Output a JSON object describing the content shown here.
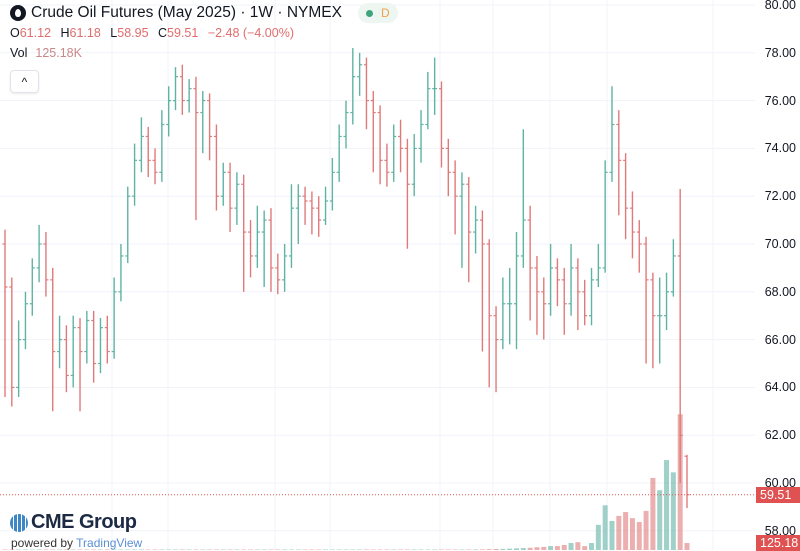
{
  "header": {
    "title": "Crude Oil Futures (May 2025) · 1W · NYMEX",
    "status_dot_color": "#3fa37d",
    "badge_letter": "D",
    "ohlc": {
      "o_label": "O",
      "o": "61.12",
      "h_label": "H",
      "h": "61.18",
      "l_label": "L",
      "l": "58.95",
      "c_label": "C",
      "c": "59.51",
      "change": "−2.48 (−4.00%)"
    },
    "vol_label": "Vol",
    "vol_value": "125.18K",
    "collapse_icon": "chevron-up-icon",
    "collapse_glyph": "^"
  },
  "branding": {
    "logo_text": "CME Group",
    "powered_by": "powered by",
    "platform": "TradingView"
  },
  "price_axis": {
    "ticks": [
      "80.00",
      "78.00",
      "76.00",
      "74.00",
      "72.00",
      "70.00",
      "68.00",
      "66.00",
      "64.00",
      "62.00",
      "60.00",
      "58.00"
    ],
    "last_price_label": "59.51",
    "last_volume_label": "125.18"
  },
  "colors": {
    "up": "#5fb3a3",
    "down": "#e07a7a",
    "price_tag": "#e05252"
  },
  "chart_data": {
    "type": "ohlc",
    "ylim": [
      58,
      80
    ],
    "grid": true,
    "last_price": 59.51,
    "bars": [
      [
        70,
        70.6,
        63.6,
        68.2
      ],
      [
        68.2,
        68.6,
        63.2,
        64
      ],
      [
        64,
        66.8,
        63.6,
        66
      ],
      [
        66,
        68,
        65.6,
        67.5
      ],
      [
        67.5,
        69.4,
        67,
        69
      ],
      [
        69,
        70.8,
        68.4,
        70
      ],
      [
        70,
        70.5,
        67.8,
        68.5
      ],
      [
        68.5,
        69,
        63,
        65.5
      ],
      [
        65.5,
        67,
        64.8,
        66
      ],
      [
        66,
        66.6,
        63.8,
        64.5
      ],
      [
        64.5,
        67,
        64,
        66.5
      ],
      [
        66.5,
        66.9,
        63,
        65.5
      ],
      [
        65.5,
        67.2,
        65,
        66.8
      ],
      [
        66.8,
        67.2,
        64.2,
        65
      ],
      [
        65,
        66.9,
        64.6,
        66.5
      ],
      [
        66.5,
        67,
        65,
        65.5
      ],
      [
        65.5,
        68.6,
        65.2,
        68
      ],
      [
        68,
        70,
        67.6,
        69.5
      ],
      [
        69.5,
        72.4,
        69.2,
        72
      ],
      [
        72,
        74.2,
        71.6,
        73.5
      ],
      [
        73.5,
        75.3,
        73,
        74.5
      ],
      [
        74.5,
        74.9,
        72.8,
        73.5
      ],
      [
        73.5,
        74,
        72.5,
        73
      ],
      [
        73,
        75.6,
        72.6,
        75
      ],
      [
        75,
        76.6,
        74.5,
        76
      ],
      [
        76,
        77.4,
        75.6,
        77
      ],
      [
        77,
        77.5,
        75.4,
        76
      ],
      [
        76,
        76.9,
        75.5,
        76.5
      ],
      [
        76.5,
        77,
        71,
        75.5
      ],
      [
        75.5,
        76.4,
        73.8,
        76
      ],
      [
        76,
        76.3,
        73.5,
        74.5
      ],
      [
        74.5,
        75,
        71.4,
        72
      ],
      [
        72,
        73.4,
        71.6,
        73
      ],
      [
        73,
        73.4,
        70.5,
        71.5
      ],
      [
        71.5,
        73,
        70.8,
        72.5
      ],
      [
        72.5,
        72.9,
        68,
        70.5
      ],
      [
        70.5,
        71,
        68.6,
        69.5
      ],
      [
        69.5,
        71.6,
        69,
        70.5
      ],
      [
        70.5,
        71.4,
        68.2,
        71
      ],
      [
        71,
        71.5,
        68,
        69
      ],
      [
        69,
        69.6,
        67.9,
        68.5
      ],
      [
        68.5,
        70,
        68,
        69.5
      ],
      [
        69.5,
        72.5,
        69,
        71.5
      ],
      [
        71.5,
        72.5,
        70,
        72
      ],
      [
        72,
        72.4,
        70.8,
        71.8
      ],
      [
        71.8,
        72.2,
        70.4,
        71.5
      ],
      [
        71.5,
        72,
        70.3,
        71
      ],
      [
        71,
        72.4,
        70.8,
        71.8
      ],
      [
        71.8,
        73.6,
        71.4,
        73
      ],
      [
        73,
        75,
        72.6,
        74.5
      ],
      [
        74.5,
        76,
        74,
        75.5
      ],
      [
        75.5,
        78.2,
        75,
        77
      ],
      [
        77,
        78,
        76.2,
        77.5
      ],
      [
        77.5,
        77.8,
        74.8,
        76
      ],
      [
        76,
        76.4,
        73,
        75.5
      ],
      [
        75.5,
        75.8,
        72.5,
        73.5
      ],
      [
        73.5,
        74.2,
        72.4,
        73
      ],
      [
        73,
        75,
        72.6,
        74.5
      ],
      [
        74.5,
        75.2,
        73,
        74
      ],
      [
        74,
        74.4,
        69.8,
        72.5
      ],
      [
        72.5,
        74.6,
        72,
        74
      ],
      [
        74,
        75.6,
        73.4,
        75
      ],
      [
        75,
        77.2,
        74.8,
        76.5
      ],
      [
        76.5,
        77.8,
        75.4,
        76.5
      ],
      [
        76.5,
        76.8,
        73.2,
        74
      ],
      [
        74,
        74.4,
        72,
        73
      ],
      [
        73,
        73.5,
        70.4,
        72
      ],
      [
        72,
        73,
        69,
        72.5
      ],
      [
        72.5,
        72.8,
        68.4,
        70.5
      ],
      [
        70.5,
        71.6,
        69.6,
        71
      ],
      [
        71,
        71.4,
        65.5,
        70
      ],
      [
        70,
        70.2,
        64,
        67
      ],
      [
        67,
        67.4,
        63.8,
        66
      ],
      [
        66,
        68.6,
        65.6,
        67.5
      ],
      [
        67.5,
        69,
        65.8,
        67.5
      ],
      [
        67.5,
        70.5,
        65.6,
        69.5
      ],
      [
        69.5,
        74.8,
        69,
        71
      ],
      [
        71,
        71.6,
        66.8,
        69
      ],
      [
        69,
        69.5,
        66.2,
        68
      ],
      [
        68,
        68.6,
        66,
        67.5
      ],
      [
        67.5,
        70,
        67,
        69
      ],
      [
        69,
        69.4,
        67.4,
        68.5
      ],
      [
        68.5,
        69,
        66.2,
        67.5
      ],
      [
        67.5,
        70,
        67,
        69
      ],
      [
        69,
        69.4,
        66.4,
        68
      ],
      [
        68,
        68.5,
        66.6,
        67
      ],
      [
        67,
        69,
        66.6,
        68.5
      ],
      [
        68.5,
        70,
        68.2,
        69
      ],
      [
        69,
        73.5,
        68.8,
        73
      ],
      [
        73,
        76.6,
        72.6,
        75
      ],
      [
        75,
        75.6,
        71.2,
        73.5
      ],
      [
        73.5,
        73.8,
        70.2,
        71.5
      ],
      [
        71.5,
        72.2,
        69.4,
        70.5
      ],
      [
        70.5,
        71,
        68.8,
        70
      ],
      [
        70,
        70.3,
        65,
        68.5
      ],
      [
        68.5,
        68.8,
        64.8,
        67
      ],
      [
        67,
        68.6,
        65,
        67
      ],
      [
        67,
        68.8,
        66.4,
        68
      ],
      [
        68,
        70.2,
        67.8,
        69.5
      ],
      [
        69.5,
        72.3,
        60,
        61.99
      ],
      [
        61.12,
        61.18,
        58.95,
        59.51
      ]
    ],
    "volume_k": [
      2,
      2,
      2,
      2,
      2,
      2,
      2,
      2,
      2,
      2,
      2,
      2,
      2,
      2,
      2,
      2,
      2,
      2,
      2,
      2,
      3,
      3,
      3,
      3,
      3,
      3,
      3,
      3,
      3,
      3,
      3,
      3,
      3,
      3,
      3,
      3,
      3,
      3,
      3,
      3,
      4,
      4,
      4,
      4,
      4,
      4,
      4,
      4,
      4,
      4,
      5,
      5,
      5,
      5,
      5,
      5,
      5,
      5,
      6,
      6,
      6,
      6,
      6,
      7,
      7,
      7,
      8,
      8,
      9,
      10,
      12,
      15,
      18,
      20,
      25,
      30,
      35,
      40,
      50,
      55,
      70,
      70,
      90,
      125,
      140,
      70,
      125,
      450,
      800,
      520,
      610,
      680,
      570,
      500,
      700,
      1290,
      1070,
      1610,
      1390,
      2430,
      125.18
    ]
  }
}
